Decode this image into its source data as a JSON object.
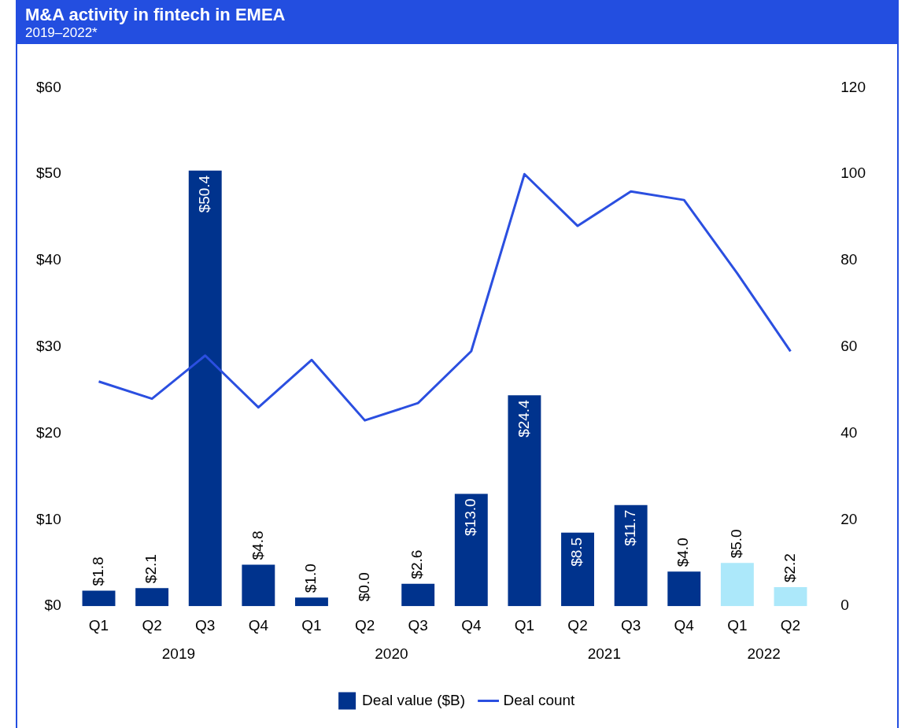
{
  "chart_data": {
    "type": "bar",
    "title": "M&A activity in fintech in EMEA",
    "subtitle": "2019–2022*",
    "categories": [
      "Q1",
      "Q2",
      "Q3",
      "Q4",
      "Q1",
      "Q2",
      "Q3",
      "Q4",
      "Q1",
      "Q2",
      "Q3",
      "Q4",
      "Q1",
      "Q2"
    ],
    "annotations": [
      "2019",
      "2020",
      "2021",
      "2022"
    ],
    "series": [
      {
        "name": "Deal value ($B)",
        "color": "#00338d",
        "colors": [
          "#00338d",
          "#00338d",
          "#00338d",
          "#00338d",
          "#00338d",
          "#00338d",
          "#00338d",
          "#00338d",
          "#00338d",
          "#00338d",
          "#00338d",
          "#00338d",
          "#ace8fa",
          "#ace8fa"
        ],
        "values": [
          1.8,
          2.1,
          50.4,
          4.8,
          1.0,
          0.0,
          2.6,
          13.0,
          24.4,
          8.5,
          11.7,
          4.0,
          5.0,
          2.2
        ],
        "value_labels": [
          "$1.8",
          "$2.1",
          "$50.4",
          "$4.8",
          "$1.0",
          "$0.0",
          "$2.6",
          "$13.0",
          "$24.4",
          "$8.5",
          "$11.7",
          "$4.0",
          "$5.0",
          "$2.2"
        ]
      },
      {
        "name": "Deal count",
        "type": "line",
        "color": "#2b4fe0",
        "axis": "y2",
        "values": [
          52,
          48,
          58,
          46,
          57,
          43,
          47,
          59,
          100,
          88,
          96,
          94,
          77,
          59
        ]
      }
    ],
    "ylim": [
      0,
      60
    ],
    "yticks": [
      {
        "value": 0,
        "label": "$0"
      },
      {
        "value": 10,
        "label": "$10"
      },
      {
        "value": 20,
        "label": "$20"
      },
      {
        "value": 30,
        "label": "$30"
      },
      {
        "value": 40,
        "label": "$40"
      },
      {
        "value": 50,
        "label": "$50"
      },
      {
        "value": 60,
        "label": "$60"
      }
    ],
    "y2lim": [
      0,
      120
    ],
    "y2ticks": [
      0,
      20,
      40,
      60,
      80,
      100,
      120
    ],
    "grid": false,
    "legend": "bottom",
    "marker": "none",
    "line_style": "solid"
  }
}
